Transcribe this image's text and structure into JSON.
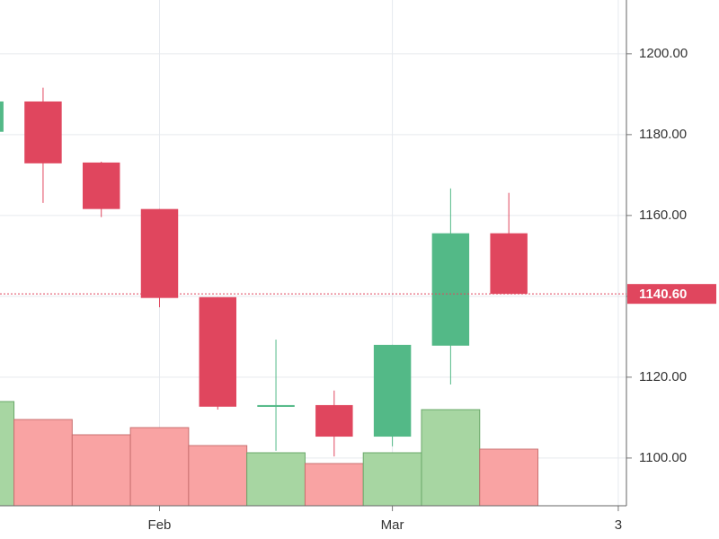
{
  "chart_data": {
    "type": "candlestick",
    "x": [
      0,
      1,
      2,
      3,
      4,
      5,
      6,
      7,
      8,
      9
    ],
    "open": [
      1180.7,
      1188.2,
      1173.1,
      1161.6,
      1139.8,
      1112.7,
      1113.1,
      1105.3,
      1127.8,
      1155.6
    ],
    "high": [
      1188.2,
      1191.6,
      1173.3,
      1161.6,
      1139.8,
      1129.3,
      1116.7,
      1128.0,
      1166.7,
      1165.6
    ],
    "low": [
      1180.7,
      1163.1,
      1159.6,
      1137.3,
      1112.0,
      1101.8,
      1100.4,
      1102.9,
      1118.2,
      1140.6
    ],
    "close": [
      1188.2,
      1172.9,
      1161.6,
      1139.6,
      1112.7,
      1113.1,
      1105.3,
      1128.0,
      1155.6,
      1140.6
    ],
    "volume": [
      116,
      96,
      79,
      87,
      67,
      59,
      47,
      59,
      107,
      63
    ],
    "volume_ylim": [
      0,
      563
    ],
    "xlim": [
      0.26,
      11.02
    ],
    "xticks": [
      {
        "value": 3,
        "label": "Feb"
      },
      {
        "value": 7,
        "label": "Mar"
      },
      {
        "value": 10.88,
        "label": "3"
      }
    ],
    "ylim": [
      1088.2,
      1213.3
    ],
    "yticks": [
      {
        "value": 1100,
        "label": "1100.00"
      },
      {
        "value": 1120,
        "label": "1120.00"
      },
      {
        "value": 1140,
        "label": "1140.00"
      },
      {
        "value": 1160,
        "label": "1160.00"
      },
      {
        "value": 1180,
        "label": "1180.00"
      },
      {
        "value": 1200,
        "label": "1200.00"
      }
    ],
    "last_price": {
      "value": 1140.6,
      "label": "1140.60"
    },
    "grid": true,
    "up_color": "#53b987",
    "down_color": "#e0465e",
    "volume_up_color": "#a7d6a2",
    "volume_down_color": "#f9a3a3"
  }
}
